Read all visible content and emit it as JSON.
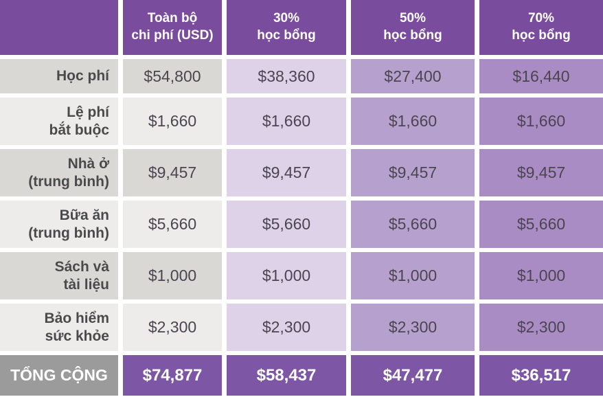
{
  "table": {
    "corner_label": "",
    "columns": [
      "Toàn bộ\nchi phí (USD)",
      "30%\nhọc bổng",
      "50%\nhọc bổng",
      "70%\nhọc bổng"
    ],
    "rows": [
      {
        "label": "Học phí",
        "values": [
          "$54,800",
          "$38,360",
          "$27,400",
          "$16,440"
        ]
      },
      {
        "label": "Lệ phí\nbắt buộc",
        "values": [
          "$1,660",
          "$1,660",
          "$1,660",
          "$1,660"
        ]
      },
      {
        "label": "Nhà ở\n(trung bình)",
        "values": [
          "$9,457",
          "$9,457",
          "$9,457",
          "$9,457"
        ]
      },
      {
        "label": "Bữa ăn\n(trung bình)",
        "values": [
          "$5,660",
          "$5,660",
          "$5,660",
          "$5,660"
        ]
      },
      {
        "label": "Sách và\ntài liệu",
        "values": [
          "$1,000",
          "$1,000",
          "$1,000",
          "$1,000"
        ]
      },
      {
        "label": "Bảo hiểm\nsức khỏe",
        "values": [
          "$2,300",
          "$2,300",
          "$2,300",
          "$2,300"
        ]
      }
    ],
    "total": {
      "label": "TỔNG CỘNG",
      "values": [
        "$74,877",
        "$58,437",
        "$47,477",
        "$36,517"
      ]
    }
  },
  "chart_data": {
    "type": "table",
    "title": "",
    "columns": [
      "",
      "Toàn bộ chi phí (USD)",
      "30% học bổng",
      "50% học bổng",
      "70% học bổng"
    ],
    "rows": [
      [
        "Học phí",
        54800,
        38360,
        27400,
        16440
      ],
      [
        "Lệ phí bắt buộc",
        1660,
        1660,
        1660,
        1660
      ],
      [
        "Nhà ở (trung bình)",
        9457,
        9457,
        9457,
        9457
      ],
      [
        "Bữa ăn (trung bình)",
        5660,
        5660,
        5660,
        5660
      ],
      [
        "Sách và tài liệu",
        1000,
        1000,
        1000,
        1000
      ],
      [
        "Bảo hiểm sức khỏe",
        2300,
        2300,
        2300,
        2300
      ],
      [
        "TỔNG CỘNG",
        74877,
        58437,
        47477,
        36517
      ]
    ],
    "currency": "USD"
  },
  "colors": {
    "header_purple": "#7A4C9D",
    "total_purple": "#7D57A6",
    "total_label_gray": "#9B9B9B",
    "row_gray_dark": "#D9D8D4",
    "row_gray_light": "#EDECEB",
    "col_30": "#DDD2E8",
    "col_50": "#B6A1CE",
    "col_70": "#A98CC3",
    "label_text": "#4A4A4C",
    "value_text": "#4B4550",
    "header_text": "#FFFFFF"
  }
}
